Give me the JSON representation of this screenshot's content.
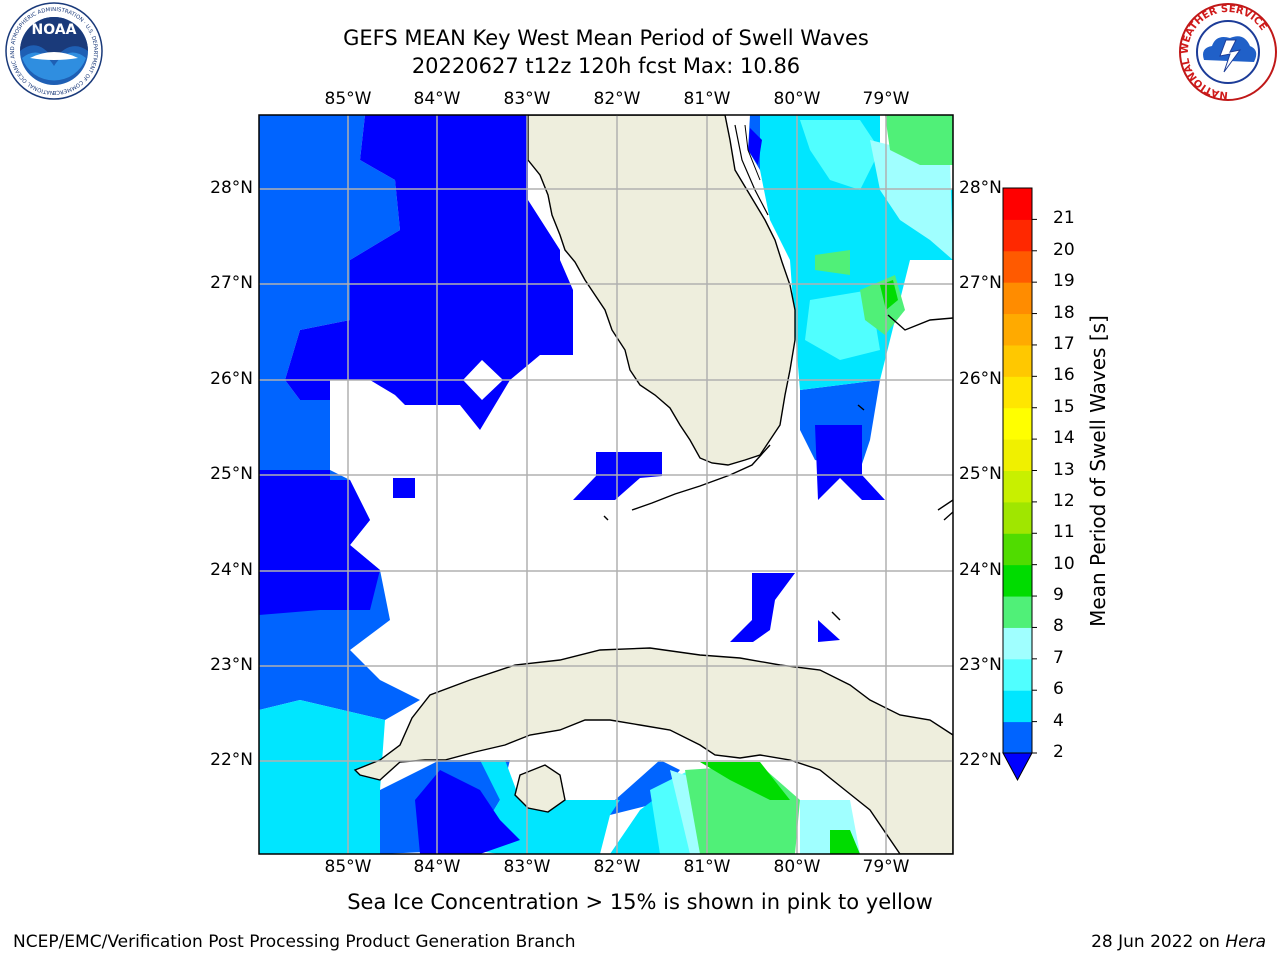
{
  "header": {
    "title_line1": "GEFS MEAN Key West Mean Period of Swell Waves",
    "title_line2": "20220627 t12z 120h fcst   Max: 10.86"
  },
  "map": {
    "lon_labels": [
      "85°W",
      "84°W",
      "83°W",
      "82°W",
      "81°W",
      "80°W",
      "79°W"
    ],
    "lat_labels": [
      "28°N",
      "27°N",
      "26°N",
      "25°N",
      "24°N",
      "23°N",
      "22°N"
    ],
    "land_color": "#eeeedd",
    "grid_color": "#b0b0b0"
  },
  "colorbar": {
    "title": "Mean Period of Swell Waves [s]",
    "tick_labels": [
      "2",
      "4",
      "6",
      "7",
      "8",
      "9",
      "10",
      "11",
      "12",
      "13",
      "14",
      "15",
      "16",
      "17",
      "18",
      "19",
      "20",
      "21"
    ],
    "colors": [
      "#0064ff",
      "#00e6ff",
      "#50ffff",
      "#a0ffff",
      "#50f078",
      "#00dc00",
      "#50dc00",
      "#a0e600",
      "#c8f000",
      "#f0f000",
      "#ffff00",
      "#ffe600",
      "#ffc800",
      "#ffaa00",
      "#ff8c00",
      "#ff5a00",
      "#ff2800",
      "#ff0000"
    ],
    "under_color": "#0000ff"
  },
  "subtitle": "Sea Ice Concentration > 15% is shown in pink to yellow",
  "footer": {
    "left": "NCEP/EMC/Verification Post Processing Product Generation Branch",
    "right_date": "28 Jun 2022 on",
    "right_host": "Hera"
  },
  "logos": {
    "noaa_text": "NOAA",
    "noaa_ring_text": "NATIONAL OCEANIC AND ATMOSPHERIC ADMINISTRATION · U.S. DEPARTMENT OF COMMERCE",
    "nws_ring_text": "NATIONAL WEATHER SERVICE"
  }
}
